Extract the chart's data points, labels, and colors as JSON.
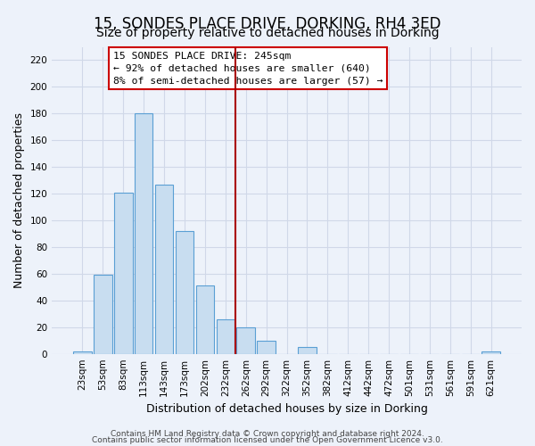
{
  "title": "15, SONDES PLACE DRIVE, DORKING, RH4 3ED",
  "subtitle": "Size of property relative to detached houses in Dorking",
  "xlabel": "Distribution of detached houses by size in Dorking",
  "ylabel": "Number of detached properties",
  "bar_labels": [
    "23sqm",
    "53sqm",
    "83sqm",
    "113sqm",
    "143sqm",
    "173sqm",
    "202sqm",
    "232sqm",
    "262sqm",
    "292sqm",
    "322sqm",
    "352sqm",
    "382sqm",
    "412sqm",
    "442sqm",
    "472sqm",
    "501sqm",
    "531sqm",
    "561sqm",
    "591sqm",
    "621sqm"
  ],
  "bar_values": [
    2,
    59,
    121,
    180,
    127,
    92,
    51,
    26,
    20,
    10,
    0,
    5,
    0,
    0,
    0,
    0,
    0,
    0,
    0,
    0,
    2
  ],
  "bar_color": "#c8ddf0",
  "bar_edge_color": "#5a9fd4",
  "vline_x": 8.0,
  "vline_color": "#aa0000",
  "ylim": [
    0,
    230
  ],
  "yticks": [
    0,
    20,
    40,
    60,
    80,
    100,
    120,
    140,
    160,
    180,
    200,
    220
  ],
  "annotation_title": "15 SONDES PLACE DRIVE: 245sqm",
  "annotation_line1": "← 92% of detached houses are smaller (640)",
  "annotation_line2": "8% of semi-detached houses are larger (57) →",
  "footer1": "Contains HM Land Registry data © Crown copyright and database right 2024.",
  "footer2": "Contains public sector information licensed under the Open Government Licence v3.0.",
  "bg_color": "#edf2fa",
  "grid_color": "#d0d8e8",
  "title_fontsize": 12,
  "subtitle_fontsize": 10,
  "axis_label_fontsize": 9,
  "tick_fontsize": 7.5,
  "footer_fontsize": 6.5
}
